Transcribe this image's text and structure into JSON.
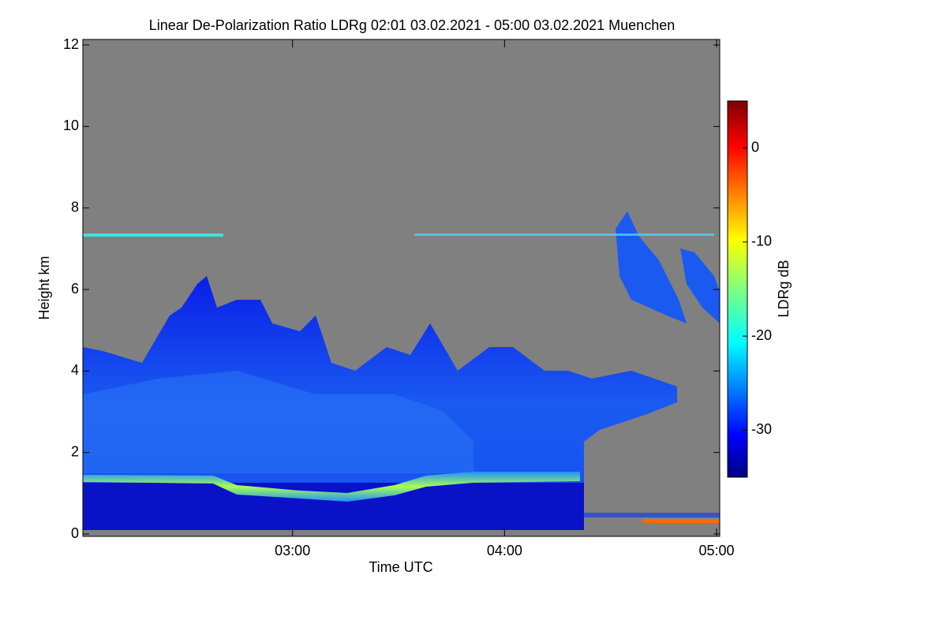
{
  "chart_data": {
    "type": "heatmap",
    "title": "Linear De-Polarization Ratio LDRg   02:01 03.02.2021 - 05:00 03.02.2021 Muenchen",
    "x_label": "Time UTC",
    "y_label": "Height km",
    "xlim": [
      121,
      300
    ],
    "xticks": [
      {
        "value": 180,
        "label": "03:00"
      },
      {
        "value": 240,
        "label": "04:00"
      },
      {
        "value": 300,
        "label": "05:00"
      }
    ],
    "ylim": [
      0,
      12
    ],
    "yticks": [
      0,
      2,
      4,
      6,
      8,
      10,
      12
    ],
    "colorbar": {
      "label": "LDRg dB",
      "lim": [
        -35,
        5
      ],
      "ticks": [
        -30,
        -20,
        -10,
        0
      ],
      "colormap": "jet"
    },
    "missing_color": "#808080"
  }
}
